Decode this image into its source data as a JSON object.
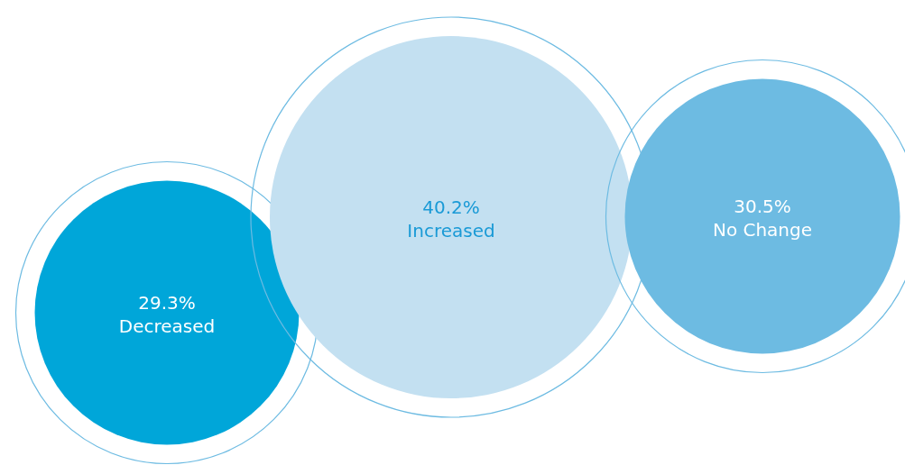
{
  "chart_data": {
    "type": "other",
    "categories": [
      "Decreased",
      "Increased",
      "No Change"
    ],
    "values": [
      29.3,
      40.2,
      30.5
    ],
    "value_labels": [
      "29.3%",
      "40.2%",
      "30.5%"
    ],
    "colors": [
      "#00a6d9",
      "#c3e0f1",
      "#6dbbe2"
    ]
  }
}
